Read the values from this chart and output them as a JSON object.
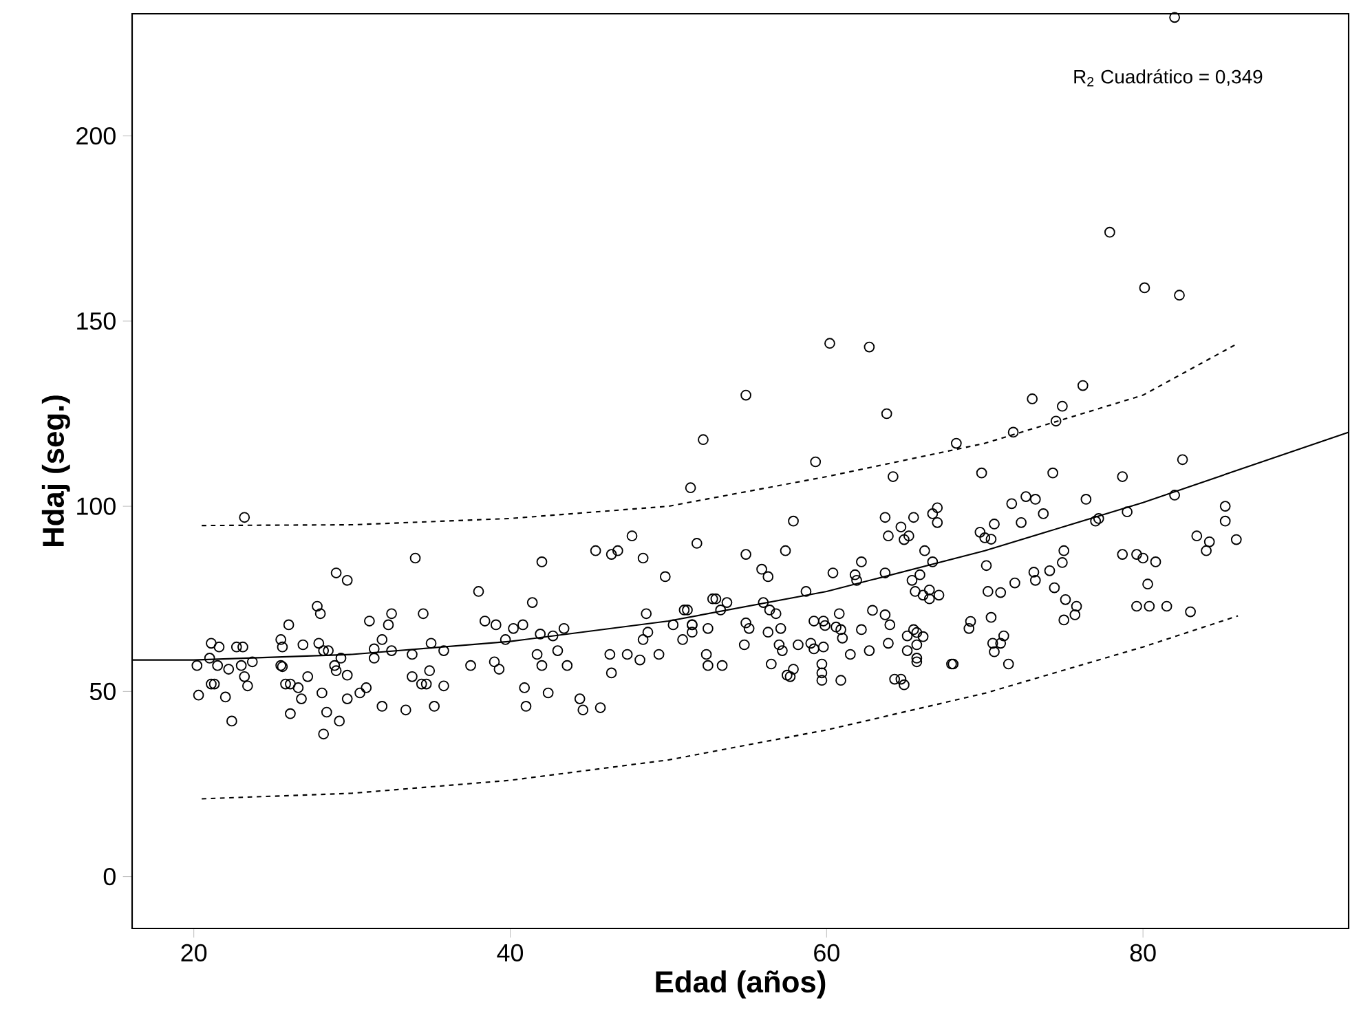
{
  "chart_data": {
    "type": "scatter",
    "xlabel": "Edad (años)",
    "ylabel": "Hdaj (seg.)",
    "annotations": [
      "R$_{2}$ Cuadrático = 0,349"
    ],
    "xlim": [
      16.1,
      93
    ],
    "ylim": [
      -14,
      233
    ],
    "xticks": [
      20,
      40,
      60,
      80
    ],
    "yticks": [
      0,
      50,
      100,
      150,
      200
    ],
    "grid": false,
    "series": [
      {
        "color": "#000000",
        "marker": "circle",
        "x": [
          23.2,
          21.1,
          21.6,
          22.7,
          23.1,
          21,
          21.5,
          22.2,
          23,
          23.7,
          20.2,
          21.1,
          21.3,
          20.3,
          22,
          23.4,
          23.2,
          22.4,
          25.5,
          25.6,
          25.5,
          25.6,
          25.8,
          26.1,
          26.6,
          26.8,
          27.2,
          26.1,
          26,
          26.9,
          27.9,
          28.2,
          28.5,
          29.3,
          28.9,
          29,
          29.7,
          28.1,
          28.4,
          29.2,
          28.2,
          29.7,
          30.5,
          30.9,
          27.8,
          28,
          29,
          29.7,
          31.1,
          32.3,
          32.5,
          34.5,
          31.9,
          31.4,
          32.5,
          33.8,
          31.4,
          31.9,
          33.4,
          33.8,
          34.7,
          34.9,
          34,
          35,
          35.8,
          34.4,
          35.8,
          35.2,
          37.5,
          38,
          38.4,
          39.1,
          40.2,
          40.8,
          39.7,
          41.4,
          41.9,
          42.7,
          43.4,
          43,
          41.7,
          42,
          43.6,
          39,
          39.3,
          40.9,
          41,
          42.4,
          44.4,
          44.6,
          45.7,
          42,
          45.4,
          46.4,
          46.8,
          47.7,
          48.4,
          49.8,
          48.6,
          48.7,
          48.4,
          46.3,
          47.4,
          48.2,
          49.4,
          46.4,
          50.3,
          51,
          51.5,
          50.9,
          51.5,
          52.5,
          52.4,
          52.5,
          52.8,
          51.8,
          52.2,
          51.4,
          53,
          53.7,
          53.3,
          56,
          56.4,
          56.8,
          51.2,
          51.5,
          54.9,
          55.1,
          56.3,
          57.1,
          57,
          57.2,
          54.8,
          53.4,
          56.5,
          54.9,
          57.4,
          55.9,
          56.3,
          57.9,
          58.7,
          59.3,
          57.5,
          57.7,
          57.9,
          58.2,
          59,
          59.2,
          59.8,
          59.7,
          59.7,
          59.7,
          60.9,
          59.2,
          59.8,
          59.9,
          60.6,
          60.9,
          61,
          61.5,
          60.8,
          62.2,
          62.7,
          62.9,
          63.7,
          64,
          63.9,
          64.3,
          64.7,
          64.9,
          65.1,
          65.5,
          65.7,
          66.1,
          65.7,
          65.1,
          65.7,
          65.7,
          60.4,
          61.8,
          61.9,
          62.2,
          63.7,
          63.7,
          63.9,
          64.7,
          64.9,
          65.2,
          65.5,
          66.7,
          67,
          67,
          66.2,
          66.7,
          65.4,
          65.9,
          65.6,
          66.1,
          66.5,
          66.5,
          67.1,
          64.2,
          63.8,
          60.2,
          62.7,
          54.9,
          68.2,
          68,
          67.9,
          69.8,
          74.3,
          71.8,
          74.5,
          73,
          74.9,
          76.2,
          78.7,
          82.5,
          71.7,
          72.6,
          73.2,
          73.7,
          72.3,
          70.6,
          69.7,
          70,
          70.4,
          76.4,
          77,
          77.2,
          79,
          82,
          85.2,
          85.2,
          83.4,
          84.2,
          84,
          85.9,
          78.7,
          79.6,
          80,
          80.8,
          80.3,
          79.6,
          80.4,
          81.5,
          83,
          75,
          74.9,
          74.1,
          73.1,
          73.2,
          71.9,
          74.4,
          75.1,
          75.8,
          75.7,
          75,
          70.1,
          70.2,
          71,
          70.4,
          69.1,
          69,
          70.5,
          71.2,
          71,
          70.6,
          71.5,
          77.9,
          80.1,
          82.3,
          82
        ],
        "values": [
          97,
          63,
          62,
          62,
          62,
          59,
          57,
          56,
          57,
          58,
          57,
          52,
          52,
          49,
          48.5,
          51.5,
          54,
          42,
          64,
          62,
          57,
          56.7,
          52,
          52,
          51,
          48,
          54,
          44,
          68,
          62.6,
          63,
          61,
          61,
          59,
          57,
          55.6,
          54.4,
          49.6,
          44.4,
          42,
          38.5,
          48,
          49.6,
          51,
          73,
          71,
          82,
          80,
          69,
          68,
          71,
          71,
          64,
          61.5,
          61,
          60,
          59,
          46,
          45,
          54,
          52,
          55.6,
          86,
          63,
          61,
          52,
          51.5,
          46,
          57,
          77,
          69,
          68,
          67,
          68,
          64,
          74,
          65.5,
          65,
          67,
          61,
          60,
          57,
          57,
          58,
          56,
          51,
          46,
          49.6,
          48,
          45,
          45.6,
          85,
          88,
          87,
          88,
          92,
          86,
          81,
          71,
          66,
          64,
          60,
          60,
          58.5,
          60,
          55,
          68,
          72,
          68,
          64,
          66,
          67,
          60,
          57,
          75,
          90,
          118,
          105,
          75,
          74,
          72,
          74,
          72,
          71,
          72,
          68,
          68.5,
          67,
          66,
          67,
          62.6,
          61,
          62.6,
          57,
          57.4,
          87,
          88,
          83,
          81,
          96,
          77,
          112,
          54.4,
          54,
          56,
          62.6,
          63,
          61.5,
          62,
          57.4,
          55,
          53,
          53,
          69,
          69,
          67.8,
          67.4,
          66.7,
          64.4,
          60,
          71,
          66.7,
          61,
          71.9,
          70.7,
          68,
          63,
          53.3,
          53.3,
          51.8,
          65,
          66.7,
          65.9,
          64.8,
          62.6,
          61,
          59,
          58,
          82,
          81.5,
          80,
          85,
          82,
          97,
          92,
          94.4,
          91,
          92,
          97,
          98,
          99.6,
          95.6,
          88,
          85,
          80,
          81.5,
          77,
          76,
          77.4,
          75,
          76,
          108,
          125,
          144,
          143,
          130,
          117,
          57.4,
          57.4,
          109,
          109,
          120,
          123,
          129,
          127,
          132.6,
          108,
          112.6,
          100.7,
          102.6,
          101.9,
          98,
          95.6,
          95.2,
          93,
          91.5,
          91.1,
          101.9,
          96,
          96.7,
          98.5,
          103,
          100,
          96,
          92,
          90.4,
          88,
          91,
          87,
          87,
          86,
          85,
          79,
          73,
          73,
          73,
          71.5,
          88,
          84.8,
          82.6,
          82.2,
          80,
          79.3,
          78,
          74.8,
          73,
          70.7,
          69.3,
          84,
          77,
          76.7,
          70,
          68.9,
          67,
          63,
          65,
          63,
          60.7,
          57.4,
          174,
          159,
          157,
          232
        ]
      },
      {
        "type": "line",
        "color": "#000000",
        "line_style": "solid",
        "x": [
          16.1,
          20,
          30,
          40,
          50,
          60,
          70,
          80,
          93
        ],
        "values": [
          58.5,
          58.5,
          60,
          63.5,
          69,
          77,
          88,
          101,
          120
        ]
      },
      {
        "type": "line",
        "color": "#000000",
        "line_style": "dashed",
        "x": [
          20.5,
          30,
          40,
          50,
          60,
          70,
          80,
          86
        ],
        "values": [
          94.8,
          95,
          96.7,
          100,
          108,
          117,
          130,
          144
        ]
      },
      {
        "type": "line",
        "color": "#000000",
        "line_style": "dashed",
        "x": [
          20.5,
          30,
          40,
          50,
          60,
          70,
          80,
          86
        ],
        "values": [
          21,
          22.5,
          26,
          31.5,
          39.6,
          49.5,
          62,
          70.4
        ]
      }
    ]
  }
}
